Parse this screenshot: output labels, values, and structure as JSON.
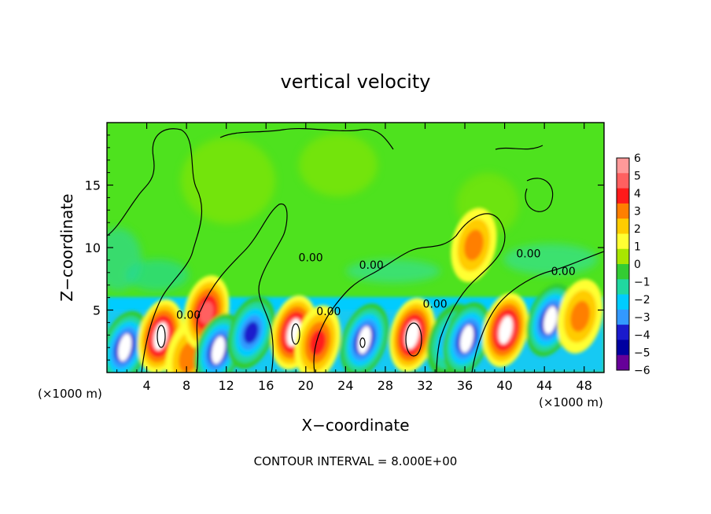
{
  "chart_data": {
    "type": "heatmap",
    "title": "vertical velocity",
    "xlabel": "X−coordinate",
    "ylabel": "Z−coordinate",
    "x_unit_left": "(×1000 m)",
    "x_unit_right": "(×1000 m)",
    "footer": "CONTOUR INTERVAL = 8.000E+00",
    "xlim": [
      0,
      50
    ],
    "ylim": [
      0,
      20
    ],
    "x_ticks": [
      4,
      8,
      12,
      16,
      20,
      24,
      28,
      32,
      36,
      40,
      44,
      48
    ],
    "y_ticks": [
      5,
      10,
      15
    ],
    "x_tick_labels": [
      "4",
      "8",
      "12",
      "16",
      "20",
      "24",
      "28",
      "32",
      "36",
      "40",
      "44",
      "48"
    ],
    "y_tick_labels": [
      "5",
      "10",
      "15"
    ],
    "colorbar": {
      "levels": [
        6,
        5,
        4,
        3,
        2,
        1,
        0,
        -1,
        -2,
        -3,
        -4,
        -5,
        -6
      ],
      "labels": [
        "6",
        "5",
        "4",
        "3",
        "2",
        "1",
        "0",
        "−1",
        "−2",
        "−3",
        "−4",
        "−5",
        "−6"
      ],
      "colors": [
        "#ff9999",
        "#ff6060",
        "#ff1a1a",
        "#ff7f00",
        "#ffcc00",
        "#ffff33",
        "#a8e600",
        "#33cc33",
        "#20d8a0",
        "#00ccff",
        "#3399ff",
        "#1a1acc",
        "#0000a0",
        "#660099"
      ]
    },
    "contour_labels": [
      {
        "text": "0.00",
        "x": 20.5,
        "y": 8.9
      },
      {
        "text": "0.00",
        "x": 26.6,
        "y": 8.3
      },
      {
        "text": "0.00",
        "x": 42.4,
        "y": 9.2
      },
      {
        "text": "0.00",
        "x": 45.9,
        "y": 7.8
      },
      {
        "text": "0.00",
        "x": 8.2,
        "y": 4.3
      },
      {
        "text": "0.00",
        "x": 22.3,
        "y": 4.6
      },
      {
        "text": "0.00",
        "x": 33.0,
        "y": 5.2
      }
    ],
    "cells": [
      {
        "x": 1.8,
        "z": 2.0,
        "value": -6
      },
      {
        "x": 5.4,
        "z": 2.9,
        "value": 6
      },
      {
        "x": 8.2,
        "z": 1.2,
        "value": 3
      },
      {
        "x": 10.0,
        "z": 4.8,
        "value": 5
      },
      {
        "x": 11.2,
        "z": 1.8,
        "value": -6
      },
      {
        "x": 14.5,
        "z": 3.2,
        "value": -5
      },
      {
        "x": 18.8,
        "z": 3.2,
        "value": 6
      },
      {
        "x": 21.2,
        "z": 2.4,
        "value": 4
      },
      {
        "x": 25.9,
        "z": 2.6,
        "value": -6
      },
      {
        "x": 30.7,
        "z": 3.0,
        "value": 6
      },
      {
        "x": 34.6,
        "z": 2.6,
        "value": -4
      },
      {
        "x": 36.2,
        "z": 2.7,
        "value": -6
      },
      {
        "x": 40.1,
        "z": 3.4,
        "value": 6
      },
      {
        "x": 44.6,
        "z": 4.2,
        "value": -6
      },
      {
        "x": 47.6,
        "z": 4.5,
        "value": 3
      },
      {
        "x": 36.9,
        "z": 10.2,
        "value": 3
      }
    ]
  }
}
